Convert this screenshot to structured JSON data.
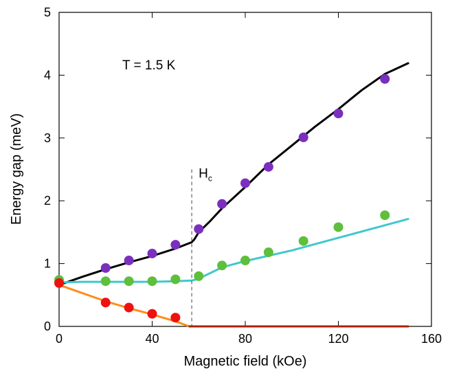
{
  "chart_data": {
    "type": "scatter",
    "xlabel": "Magnetic field (kOe)",
    "ylabel": "Energy gap (meV)",
    "xlim": [
      0,
      160
    ],
    "ylim": [
      0,
      5
    ],
    "xticks": [
      0,
      40,
      80,
      120,
      160
    ],
    "yticks": [
      0,
      1,
      2,
      3,
      4,
      5
    ],
    "grid": false,
    "annotation": "T = 1.5 K",
    "hc_label": {
      "main": "H",
      "sub": "c"
    },
    "hc_x": 57,
    "series": [
      {
        "color": "#7b2fbe",
        "points": [
          [
            20,
            0.93
          ],
          [
            30,
            1.05
          ],
          [
            40,
            1.16
          ],
          [
            50,
            1.3
          ],
          [
            60,
            1.55
          ],
          [
            70,
            1.95
          ],
          [
            80,
            2.28
          ],
          [
            90,
            2.54
          ],
          [
            105,
            3.01
          ],
          [
            120,
            3.39
          ],
          [
            140,
            3.94
          ]
        ]
      },
      {
        "color": "#5dbf3b",
        "points": [
          [
            0,
            0.74
          ],
          [
            20,
            0.72
          ],
          [
            30,
            0.72
          ],
          [
            40,
            0.72
          ],
          [
            50,
            0.75
          ],
          [
            60,
            0.8
          ],
          [
            70,
            0.97
          ],
          [
            80,
            1.05
          ],
          [
            90,
            1.18
          ],
          [
            105,
            1.36
          ],
          [
            120,
            1.58
          ],
          [
            140,
            1.77
          ]
        ]
      },
      {
        "color": "#ee1111",
        "points": [
          [
            0,
            0.69
          ],
          [
            20,
            0.38
          ],
          [
            30,
            0.3
          ],
          [
            40,
            0.2
          ],
          [
            50,
            0.14
          ]
        ]
      }
    ],
    "curves": [
      {
        "color": "#000000",
        "points": [
          [
            0,
            0.66
          ],
          [
            10,
            0.79
          ],
          [
            20,
            0.91
          ],
          [
            30,
            1.02
          ],
          [
            40,
            1.12
          ],
          [
            50,
            1.24
          ],
          [
            57,
            1.34
          ],
          [
            58,
            1.38
          ],
          [
            60,
            1.5
          ],
          [
            65,
            1.68
          ],
          [
            70,
            1.88
          ],
          [
            80,
            2.22
          ],
          [
            90,
            2.58
          ],
          [
            100,
            2.88
          ],
          [
            110,
            3.18
          ],
          [
            120,
            3.46
          ],
          [
            130,
            3.76
          ],
          [
            140,
            4.02
          ],
          [
            150,
            4.19
          ]
        ]
      },
      {
        "color": "#3fc8cc",
        "points": [
          [
            0,
            0.7
          ],
          [
            10,
            0.71
          ],
          [
            20,
            0.71
          ],
          [
            30,
            0.71
          ],
          [
            40,
            0.71
          ],
          [
            50,
            0.72
          ],
          [
            57,
            0.73
          ],
          [
            60,
            0.76
          ],
          [
            70,
            0.94
          ],
          [
            80,
            1.04
          ],
          [
            100,
            1.21
          ],
          [
            120,
            1.41
          ],
          [
            150,
            1.71
          ]
        ]
      },
      {
        "color": "#ff8c1a",
        "points": [
          [
            0,
            0.66
          ],
          [
            10,
            0.53
          ],
          [
            20,
            0.4
          ],
          [
            30,
            0.29
          ],
          [
            40,
            0.19
          ],
          [
            50,
            0.08
          ],
          [
            56,
            0.0
          ],
          [
            150,
            0.0
          ]
        ]
      },
      {
        "color": "#aa2200",
        "points": [
          [
            56,
            0.0
          ],
          [
            150,
            0.0
          ]
        ]
      }
    ]
  }
}
